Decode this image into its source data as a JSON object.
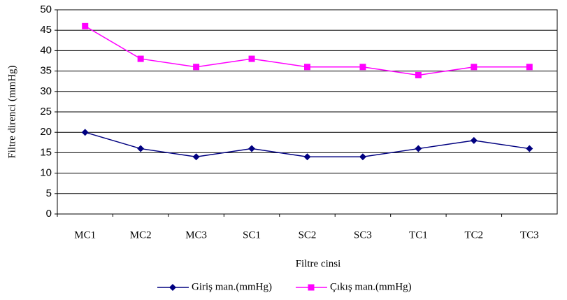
{
  "chart_data": {
    "type": "line",
    "categories": [
      "MC1",
      "MC2",
      "MC3",
      "SC1",
      "SC2",
      "SC3",
      "TC1",
      "TC2",
      "TC3"
    ],
    "series": [
      {
        "name": "Giriş man.(mmHg)",
        "color": "#000080",
        "marker": "diamond",
        "values": [
          20,
          16,
          14,
          16,
          14,
          14,
          16,
          18,
          16
        ]
      },
      {
        "name": "Çıkış man.(mmHg)",
        "color": "#ff00ff",
        "marker": "square",
        "values": [
          46,
          38,
          36,
          38,
          36,
          36,
          34,
          36,
          36
        ]
      }
    ],
    "xlabel": "Filtre cinsi",
    "ylabel": "Filtre direnci (mmHg)",
    "ylim": [
      0,
      50
    ],
    "yticks": [
      0,
      5,
      10,
      15,
      20,
      25,
      30,
      35,
      40,
      45,
      50
    ],
    "grid": true,
    "legend": "bottom"
  }
}
